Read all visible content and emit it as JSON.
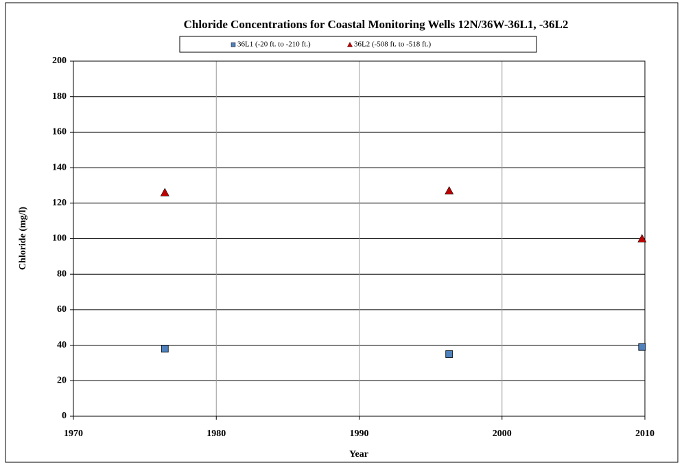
{
  "chart_data": {
    "type": "scatter",
    "title": "Chloride Concentrations for Coastal Monitoring Wells 12N/36W-36L1, -36L2",
    "xlabel": "Year",
    "ylabel": "Chloride (mg/l)",
    "series": [
      {
        "name": "36L1 (-20 ft. to -210 ft.)",
        "color": "#4f81bd",
        "marker": "square",
        "x": [
          1976.4,
          1996.3,
          2009.8
        ],
        "values": [
          38,
          35,
          39
        ]
      },
      {
        "name": "36L2 (-508 ft. to -518 ft.)",
        "color": "#c00000",
        "marker": "triangle",
        "x": [
          1976.4,
          1996.3,
          2009.8
        ],
        "values": [
          126,
          127,
          100
        ]
      }
    ],
    "xlim": [
      1970,
      2010
    ],
    "xticks": [
      1970,
      1980,
      1990,
      2000,
      2010
    ],
    "ylim": [
      0,
      200
    ],
    "yticks": [
      0,
      20,
      40,
      60,
      80,
      100,
      120,
      140,
      160,
      180,
      200
    ],
    "grid": true,
    "legend": "top"
  }
}
